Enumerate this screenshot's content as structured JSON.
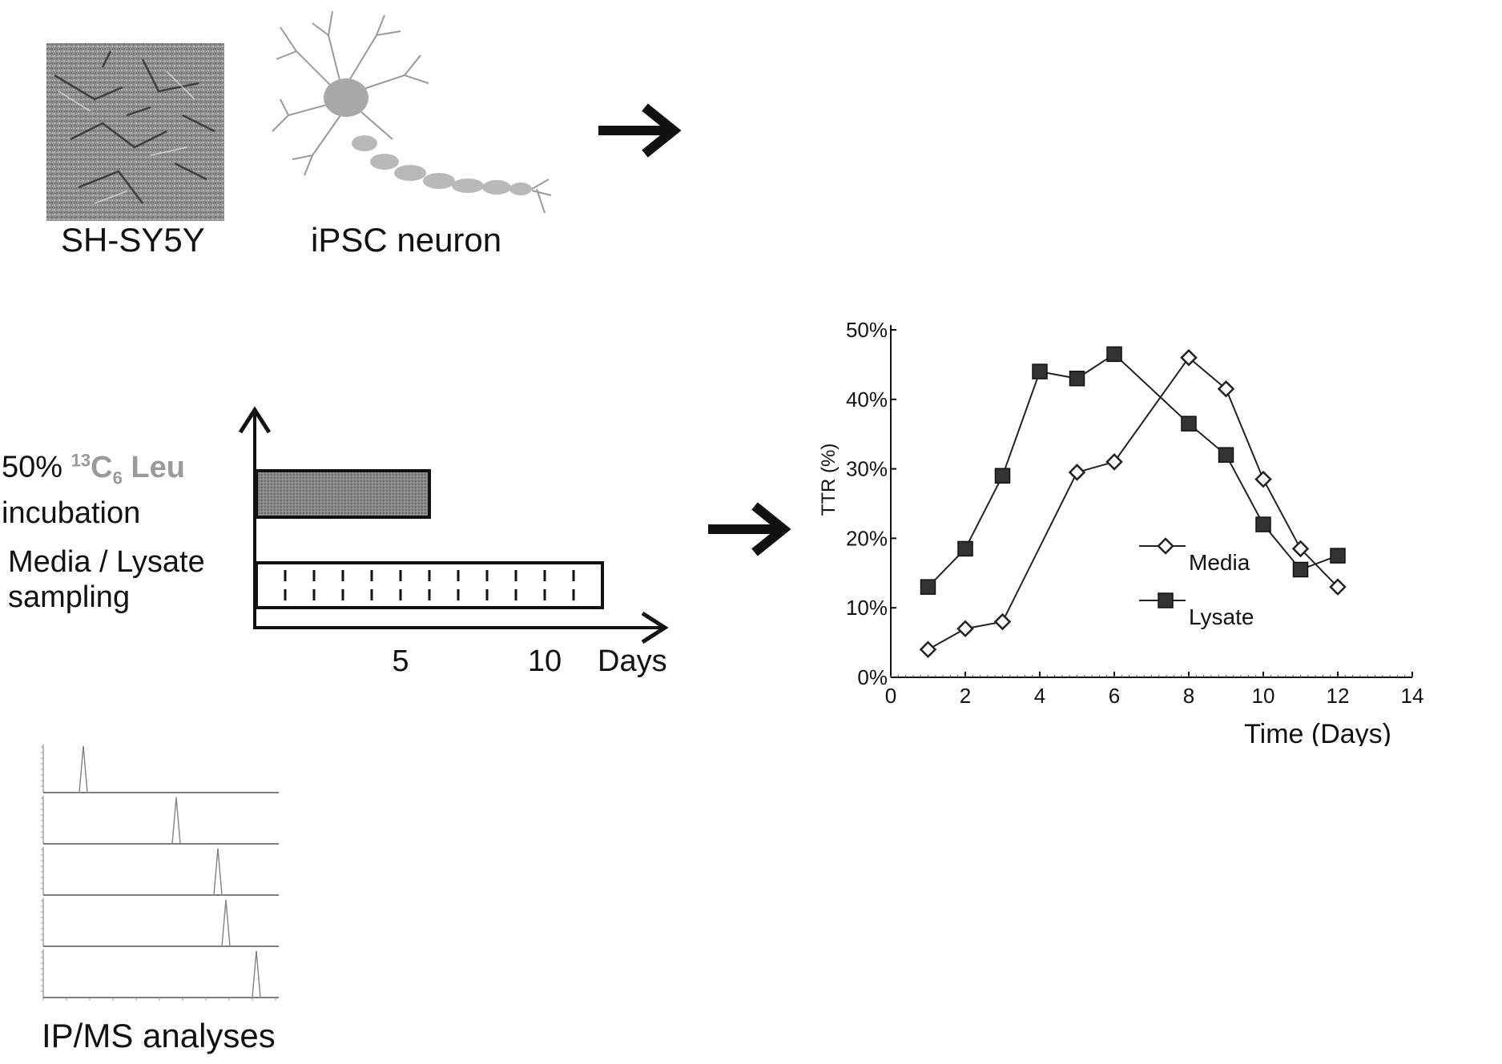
{
  "cells": {
    "shsy5y_label": "SH-SY5Y",
    "ipsc_label": "iPSC neuron"
  },
  "timeline": {
    "label_pct": "50% ",
    "label_isotope_sup": "13",
    "label_isotope_c": "C",
    "label_isotope_sub": "6",
    "label_isotope_leu": " Leu",
    "label_incubation": "incubation",
    "label_sampling_1": "Media / Lysate",
    "label_sampling_2": "sampling",
    "tick_5": "5",
    "tick_10": "10",
    "axis_unit": "Days",
    "isotope_color": "#9a9a9a",
    "incubation_days": 6,
    "sampling_days": 12,
    "sampling_points": 11
  },
  "ipms": {
    "label": "IP/MS analyses",
    "traces": 5
  },
  "chart_data": {
    "type": "line",
    "xlabel": "Time (Days)",
    "ylabel": "TTR (%)",
    "xlim": [
      0,
      14
    ],
    "ylim": [
      0,
      50
    ],
    "x_ticks": [
      "0",
      "2",
      "4",
      "6",
      "8",
      "10",
      "12",
      "14"
    ],
    "y_ticks": [
      "0%",
      "10%",
      "20%",
      "30%",
      "40%",
      "50%"
    ],
    "grid": false,
    "legend_position": "center-right",
    "series": [
      {
        "name": "Media",
        "marker": "open-diamond",
        "x": [
          1,
          2,
          3,
          5,
          6,
          8,
          9,
          10,
          11,
          12
        ],
        "y": [
          4,
          7,
          8,
          29.5,
          31,
          46,
          41.5,
          28.5,
          18.5,
          13
        ]
      },
      {
        "name": "Lysate",
        "marker": "filled-square",
        "x": [
          1,
          2,
          3,
          4,
          5,
          6,
          8,
          9,
          10,
          11,
          12
        ],
        "y": [
          13,
          18.5,
          29,
          44,
          43,
          46.5,
          36.5,
          32,
          22,
          15.5,
          17.5
        ]
      }
    ]
  }
}
